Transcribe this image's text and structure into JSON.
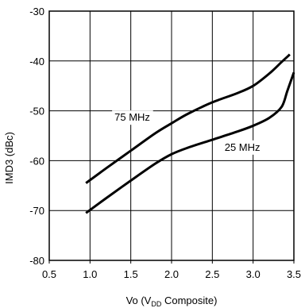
{
  "chart_data": {
    "type": "line",
    "title": "",
    "xlabel_parts": {
      "main": "Vo (V",
      "sub": "DD",
      "rest": " Composite)"
    },
    "ylabel": "IMD3 (dBc)",
    "xlim": [
      0.5,
      3.5
    ],
    "ylim": [
      -80,
      -30
    ],
    "grid": true,
    "x_ticks": [
      "0.5",
      "1.0",
      "1.5",
      "2.0",
      "2.5",
      "3.0",
      "3.5"
    ],
    "y_ticks": [
      "-30",
      "-40",
      "-50",
      "-60",
      "-70",
      "-80"
    ],
    "x_tick_values": [
      0.5,
      1.0,
      1.5,
      2.0,
      2.5,
      3.0,
      3.5
    ],
    "y_tick_values": [
      -30,
      -40,
      -50,
      -60,
      -70,
      -80
    ],
    "series": [
      {
        "name": "75 MHz",
        "label_at": [
          1.3,
          -52
        ],
        "x": [
          0.95,
          1.2,
          1.5,
          1.8,
          2.0,
          2.2,
          2.5,
          2.8,
          3.0,
          3.2,
          3.35,
          3.45
        ],
        "y": [
          -64.5,
          -61.5,
          -58.0,
          -54.5,
          -52.5,
          -50.6,
          -48.3,
          -46.5,
          -45.0,
          -42.5,
          -40.2,
          -38.7
        ]
      },
      {
        "name": "25 MHz",
        "label_at": [
          2.65,
          -58
        ],
        "x": [
          0.95,
          1.2,
          1.5,
          1.8,
          2.0,
          2.2,
          2.5,
          2.8,
          3.0,
          3.2,
          3.35,
          3.42,
          3.5
        ],
        "y": [
          -70.5,
          -67.5,
          -64.0,
          -60.6,
          -58.7,
          -57.4,
          -55.8,
          -54.2,
          -53.0,
          -51.4,
          -49.2,
          -46.0,
          -42.3
        ]
      }
    ]
  }
}
